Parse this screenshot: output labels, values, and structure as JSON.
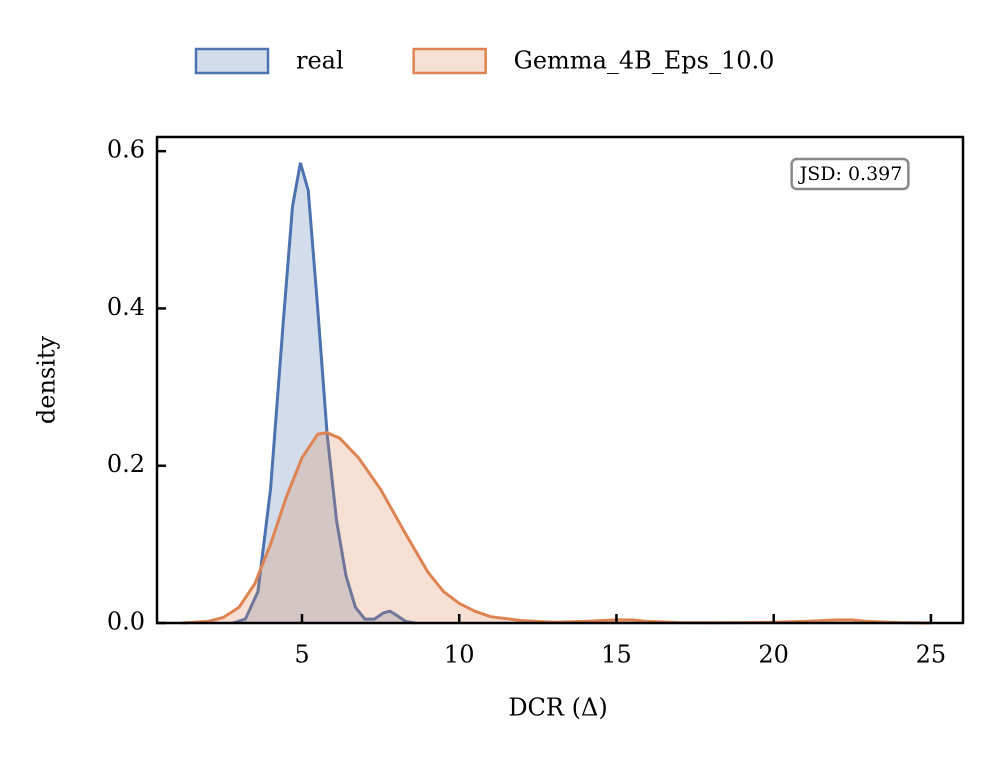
{
  "chart_data": {
    "type": "kde",
    "xlabel": "DCR (Δ)",
    "ylabel": "density",
    "annotation": "JSD: 0.397",
    "xlim": [
      0.39,
      26.02
    ],
    "ylim": [
      0,
      0.618
    ],
    "xticks": [
      5,
      10,
      15,
      20,
      25
    ],
    "yticks": [
      {
        "value": 0,
        "label": "0.0"
      },
      0.2,
      0.4,
      0.6
    ],
    "legend": "top",
    "series": [
      {
        "name": "real",
        "color": "#4c72b0",
        "x": [
          2.8,
          3.2,
          3.6,
          4.0,
          4.4,
          4.7,
          4.95,
          5.2,
          5.5,
          5.8,
          6.1,
          6.4,
          6.7,
          7.0,
          7.3,
          7.6,
          7.8,
          8.0,
          8.3,
          8.6
        ],
        "values": [
          0,
          0.005,
          0.04,
          0.17,
          0.38,
          0.53,
          0.585,
          0.55,
          0.4,
          0.24,
          0.13,
          0.06,
          0.02,
          0.005,
          0.005,
          0.013,
          0.015,
          0.01,
          0.002,
          0
        ]
      },
      {
        "name": "Gemma_4B_Eps_10.0",
        "color": "#dd8452",
        "x": [
          1.2,
          2,
          2.5,
          3,
          3.5,
          4,
          4.5,
          5,
          5.5,
          5.8,
          6.2,
          6.8,
          7.5,
          8.2,
          9,
          9.5,
          10,
          10.5,
          11,
          12,
          13,
          14,
          15,
          15.5,
          16,
          17,
          18,
          19,
          20,
          21,
          22,
          22.5,
          23,
          24,
          25
        ],
        "values": [
          0,
          0.002,
          0.007,
          0.02,
          0.05,
          0.1,
          0.16,
          0.21,
          0.24,
          0.242,
          0.235,
          0.21,
          0.17,
          0.12,
          0.065,
          0.04,
          0.025,
          0.015,
          0.008,
          0.003,
          0.001,
          0.002,
          0.004,
          0.004,
          0.002,
          0.0005,
          0.0003,
          0.0005,
          0.001,
          0.002,
          0.004,
          0.004,
          0.002,
          0.0005,
          0
        ]
      }
    ]
  }
}
